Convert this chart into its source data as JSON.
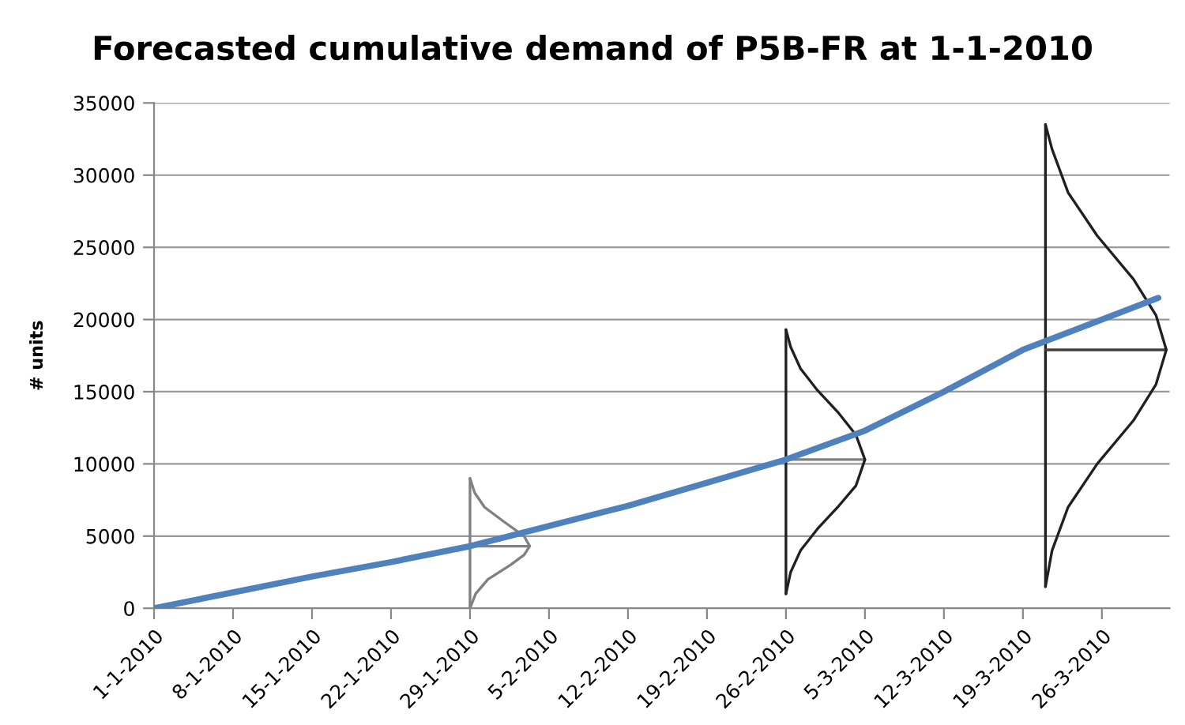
{
  "chart_data": {
    "type": "line",
    "title": "Forecasted cumulative demand of P5B-FR at 1-1-2010",
    "ylabel": "# units",
    "x": [
      "2010-01-01",
      "2010-01-08",
      "2010-01-15",
      "2010-01-22",
      "2010-01-29",
      "2010-02-05",
      "2010-02-12",
      "2010-02-19",
      "2010-02-26",
      "2010-03-05",
      "2010-03-12",
      "2010-03-19",
      "2010-03-26",
      "2010-03-31"
    ],
    "series": [
      {
        "color": "#4f81bd",
        "values": [
          0,
          1100,
          2200,
          3200,
          4300,
          5700,
          7100,
          8700,
          10300,
          12300,
          15000,
          17900,
          20000,
          21500
        ]
      },
      {
        "color": "#808080",
        "x": [
          "2010-01-29",
          "2010-01-29"
        ],
        "values": [
          0,
          9000
        ]
      },
      {
        "color": "#808080",
        "x": [
          "2010-01-29",
          "2010-02-03T07:00"
        ],
        "values": [
          4300,
          4300
        ]
      },
      {
        "color": "#808080",
        "x": [
          "2010-01-29",
          "2010-01-29T12:00",
          "2010-01-30T14:00",
          "2010-02-01T14:00",
          "2010-02-02T19:00",
          "2010-02-03T07:00",
          "2010-02-02T19:00",
          "2010-02-01T00:00",
          "2010-01-30T07:00",
          "2010-01-29T10:00",
          "2010-01-29"
        ],
        "values": [
          0,
          1000,
          2000,
          3000,
          3700,
          4300,
          5000,
          6000,
          7000,
          8000,
          9000
        ]
      },
      {
        "color": "#202020",
        "x": [
          "2010-02-26",
          "2010-02-26"
        ],
        "values": [
          1000,
          19300
        ]
      },
      {
        "color": "#808080",
        "x": [
          "2010-02-26",
          "2010-03-05"
        ],
        "values": [
          10300,
          10300
        ]
      },
      {
        "color": "#202020",
        "x": [
          "2010-02-26",
          "2010-02-26T10:00",
          "2010-02-27T07:00",
          "2010-02-28T19:00",
          "2010-03-02T14:00",
          "2010-03-04T05:00",
          "2010-03-05",
          "2010-03-04T05:00",
          "2010-03-02T14:00",
          "2010-02-28T19:00",
          "2010-02-27T07:00",
          "2010-02-26T10:00",
          "2010-02-26"
        ],
        "values": [
          1000,
          2500,
          4000,
          5500,
          7000,
          8500,
          10300,
          12000,
          13600,
          15100,
          16600,
          18100,
          19300
        ]
      },
      {
        "color": "#202020",
        "x": [
          "2010-03-21",
          "2010-03-21"
        ],
        "values": [
          1500,
          33500
        ]
      },
      {
        "color": "#404040",
        "x": [
          "2010-03-21",
          "2010-03-31T17:00"
        ],
        "values": [
          17900,
          17900
        ]
      },
      {
        "color": "#202020",
        "x": [
          "2010-03-21",
          "2010-03-21T14:00",
          "2010-03-23",
          "2010-03-25T14:00",
          "2010-03-28T19:00",
          "2010-03-30T19:00",
          "2010-03-31T17:00",
          "2010-03-30T19:00",
          "2010-03-28T19:00",
          "2010-03-25T14:00",
          "2010-03-23",
          "2010-03-21T14:00",
          "2010-03-21"
        ],
        "values": [
          1500,
          4000,
          7000,
          10000,
          13000,
          15500,
          17900,
          20300,
          22800,
          25800,
          28800,
          31800,
          33500
        ]
      }
    ],
    "xlim": [
      "2010-01-01",
      "2010-04-01"
    ],
    "xticks": [
      {
        "value": "2010-01-01",
        "label": "1-1-2010"
      },
      {
        "value": "2010-01-08",
        "label": "8-1-2010"
      },
      {
        "value": "2010-01-15",
        "label": "15-1-2010"
      },
      {
        "value": "2010-01-22",
        "label": "22-1-2010"
      },
      {
        "value": "2010-01-29",
        "label": "29-1-2010"
      },
      {
        "value": "2010-02-05",
        "label": "5-2-2010"
      },
      {
        "value": "2010-02-12",
        "label": "12-2-2010"
      },
      {
        "value": "2010-02-19",
        "label": "19-2-2010"
      },
      {
        "value": "2010-02-26",
        "label": "26-2-2010"
      },
      {
        "value": "2010-03-05",
        "label": "5-3-2010"
      },
      {
        "value": "2010-03-12",
        "label": "12-3-2010"
      },
      {
        "value": "2010-03-19",
        "label": "19-3-2010"
      },
      {
        "value": "2010-03-26",
        "label": "26-3-2010"
      }
    ],
    "ylim": [
      0,
      35000
    ],
    "yticks": [
      0,
      5000,
      10000,
      15000,
      20000,
      25000,
      30000,
      35000
    ],
    "grid": "y",
    "marker": "none",
    "line_style": "solid"
  }
}
